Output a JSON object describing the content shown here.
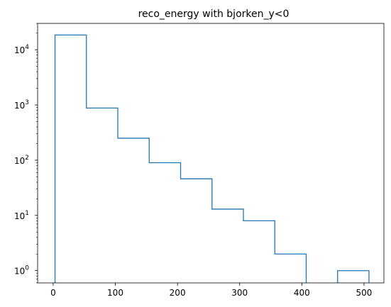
{
  "chart_data": {
    "type": "histogram",
    "title": "reco_energy with bjorken_y<0",
    "xlabel": "",
    "ylabel": "",
    "xlim": [
      -25,
      532
    ],
    "ylim": [
      0.6,
      30000
    ],
    "yscale": "log",
    "grid": false,
    "histtype": "step",
    "series_color": "#1f77b4",
    "bin_edges": [
      3,
      53.5,
      104,
      154.5,
      205,
      255.5,
      306,
      356.5,
      407,
      457.5,
      508
    ],
    "counts": [
      18500,
      880,
      250,
      90,
      46,
      13,
      8,
      2,
      0,
      1
    ],
    "x_ticks": [
      0,
      100,
      200,
      300,
      400,
      500
    ],
    "x_tick_labels": [
      "0",
      "100",
      "200",
      "300",
      "400",
      "500"
    ],
    "y_ticks": [
      1,
      10,
      100,
      1000,
      10000
    ],
    "y_tick_labels": [
      {
        "base": "10",
        "exp": "0"
      },
      {
        "base": "10",
        "exp": "1"
      },
      {
        "base": "10",
        "exp": "2"
      },
      {
        "base": "10",
        "exp": "3"
      },
      {
        "base": "10",
        "exp": "4"
      }
    ]
  }
}
